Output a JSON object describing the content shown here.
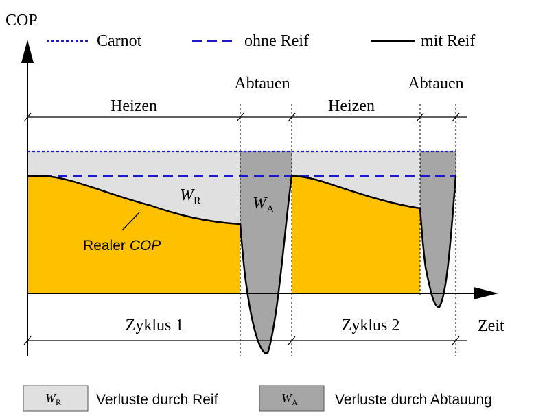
{
  "axes": {
    "y_label": "COP",
    "x_label": "Zeit"
  },
  "legend_top": {
    "carnot": "Carnot",
    "ohne_reif": "ohne Reif",
    "mit_reif": "mit Reif"
  },
  "phases": {
    "heizen_1": "Heizen",
    "abtauen_1": "Abtauen",
    "heizen_2": "Heizen",
    "abtauen_2": "Abtauen"
  },
  "cycles": {
    "zyklus_1": "Zyklus 1",
    "zyklus_2": "Zyklus 2"
  },
  "areas": {
    "wr_symbol": "W",
    "wr_sub": "R",
    "wa_symbol": "W",
    "wa_sub": "A",
    "realer_prefix": "Realer ",
    "realer_cop": "COP"
  },
  "legend_bottom": {
    "wr_symbol": "W",
    "wr_sub": "R",
    "wr_text": "Verluste durch Reif",
    "wa_symbol": "W",
    "wa_sub": "A",
    "wa_text": "Verluste durch Abtauung"
  },
  "colors": {
    "real_cop_fill": "#FFC000",
    "frost_loss_fill": "#E0E0E0",
    "defrost_loss_fill": "#A6A6A6",
    "carnot_line": "#1A1AC8",
    "ohne_reif_line": "#1A1AC8",
    "mit_reif_line": "#000000"
  }
}
